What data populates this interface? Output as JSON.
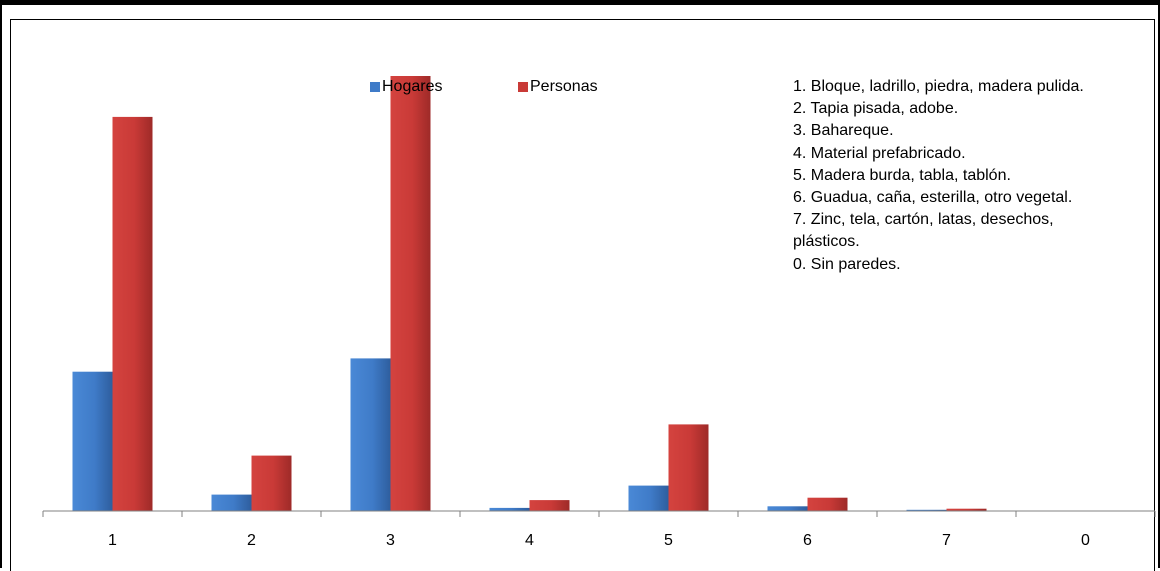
{
  "chart_data": {
    "type": "bar",
    "categories": [
      "1",
      "2",
      "3",
      "4",
      "5",
      "6",
      "7",
      "0"
    ],
    "series": [
      {
        "name": "Hogares",
        "values": [
          35.7,
          4.2,
          39.1,
          0.8,
          6.5,
          1.2,
          0.3,
          0.0
        ]
      },
      {
        "name": "Personas",
        "values": [
          101.0,
          14.2,
          111.5,
          2.8,
          22.2,
          3.4,
          0.6,
          0.0
        ]
      }
    ],
    "ylim": [
      0,
      112
    ],
    "colors": {
      "Hogares": "#3F7BC8",
      "Personas": "#C93A37"
    },
    "grid": false,
    "legend_position": "top-center",
    "annotation": [
      "1. Bloque, ladrillo, piedra, madera pulida.",
      "2. Tapia pisada, adobe.",
      "3. Bahareque.",
      "4. Material prefabricado.",
      "5. Madera burda, tabla, tablón.",
      "6. Guadua, caña, esterilla, otro vegetal.",
      "7. Zinc, tela, cartón, latas, desechos,",
      "plásticos.",
      "0. Sin paredes."
    ]
  }
}
